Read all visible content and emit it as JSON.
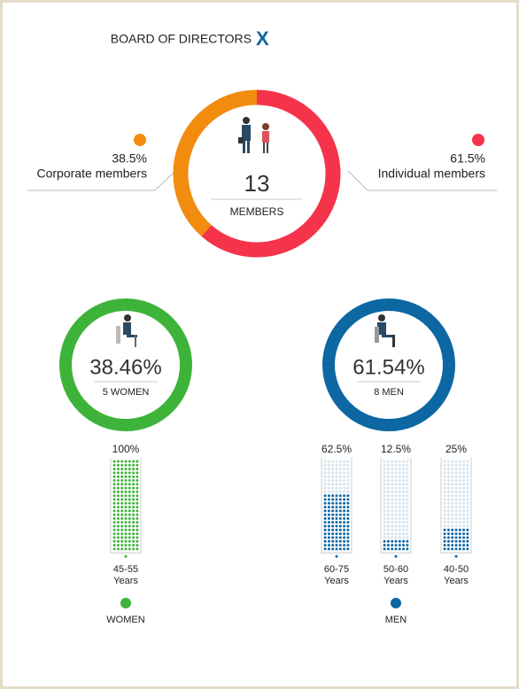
{
  "header": {
    "title": "BOARD OF DIRECTORS",
    "logo": "X"
  },
  "chart_data": [
    {
      "type": "donut",
      "categories": [
        "Corporate members",
        "Individual members"
      ],
      "values": [
        38.5,
        61.5
      ],
      "value_labels": [
        "38.5%",
        "61.5%"
      ],
      "colors": [
        "#f28c0f",
        "#f5334a"
      ],
      "total": 13,
      "total_label": "MEMBERS"
    },
    {
      "type": "ring",
      "title": "38.46%",
      "subtitle": "5 WOMEN",
      "color": "#3db33a"
    },
    {
      "type": "ring",
      "title": "61.54%",
      "subtitle": "8 MEN",
      "color": "#0c67a3"
    },
    {
      "type": "dot-column",
      "title": "WOMEN",
      "color": "#3db33a",
      "empty_color": "#d5ecd3",
      "categories": [
        "45-55 Years"
      ],
      "values": [
        100
      ],
      "value_labels": [
        "100%"
      ]
    },
    {
      "type": "dot-column",
      "title": "MEN",
      "color": "#0c67a3",
      "empty_color": "#d3e3ef",
      "categories": [
        "60-75 Years",
        "50-60 Years",
        "40-50 Years"
      ],
      "values": [
        62.5,
        12.5,
        25
      ],
      "value_labels": [
        "62.5%",
        "12.5%",
        "25%"
      ]
    }
  ]
}
